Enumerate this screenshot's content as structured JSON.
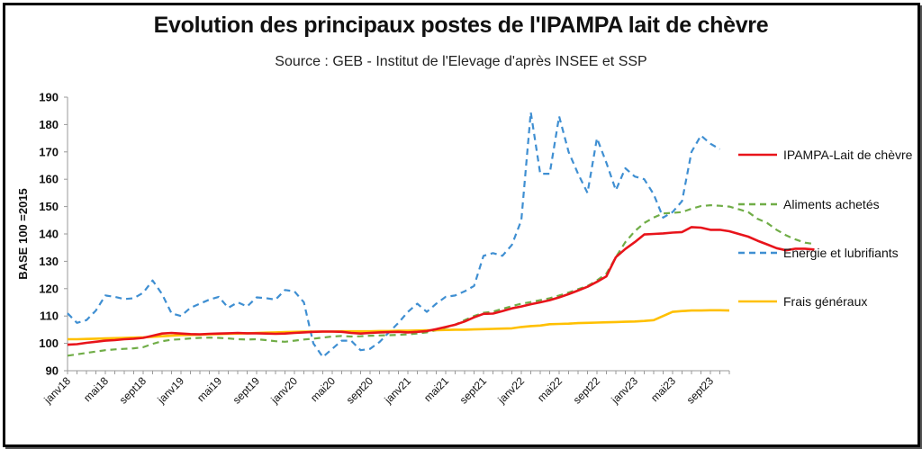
{
  "chart_data": {
    "type": "line",
    "title": "Evolution des principaux postes de l'IPAMPA lait de chèvre",
    "subtitle": "Source : GEB - Institut de l'Elevage d'après INSEE et SSP",
    "ylabel": "BASE 100 =2015",
    "xlabel": "",
    "ylim": [
      90,
      190
    ],
    "yticks": [
      90,
      100,
      110,
      120,
      130,
      140,
      150,
      160,
      170,
      180,
      190
    ],
    "xtick_labels": [
      "janv18",
      "mai18",
      "sept18",
      "janv19",
      "mai19",
      "sept19",
      "janv20",
      "mai20",
      "sept20",
      "janv21",
      "mai21",
      "sept21",
      "janv22",
      "mai22",
      "sept22",
      "janv23",
      "mai23",
      "sept23"
    ],
    "grid": false,
    "legend_position": "right",
    "series": [
      {
        "name": "IPAMPA-Lait de chèvre",
        "color": "#e8141b",
        "dash": "solid",
        "values": [
          99.5,
          99.7,
          100.2,
          100.6,
          101.0,
          101.2,
          101.5,
          101.7,
          102.0,
          102.8,
          103.6,
          103.8,
          103.6,
          103.4,
          103.3,
          103.5,
          103.6,
          103.7,
          103.8,
          103.7,
          103.7,
          103.6,
          103.5,
          103.6,
          103.8,
          104.0,
          104.2,
          104.3,
          104.3,
          104.2,
          103.8,
          103.6,
          103.8,
          104.0,
          104.1,
          104.2,
          104.0,
          104.2,
          104.5,
          105.2,
          106.0,
          106.8,
          108.0,
          109.5,
          110.8,
          110.9,
          111.8,
          112.8,
          113.5,
          114.3,
          115.0,
          115.8,
          116.8,
          118.0,
          119.3,
          120.7,
          122.5,
          124.5,
          131.5,
          134.5,
          137.0,
          139.8,
          140.0,
          140.2,
          140.5,
          140.7,
          142.5,
          142.3,
          141.5,
          141.5,
          141.0,
          140.0,
          139.0,
          137.5,
          136.2,
          134.8,
          134.0,
          134.6,
          134.6,
          134.3
        ]
      },
      {
        "name": "Aliments achetés",
        "color": "#70ad47",
        "dash": "dashed",
        "values": [
          95.5,
          96.0,
          96.5,
          97.0,
          97.5,
          97.8,
          98.0,
          98.2,
          98.6,
          99.8,
          100.8,
          101.3,
          101.5,
          101.8,
          102.0,
          102.1,
          102.0,
          101.8,
          101.5,
          101.4,
          101.5,
          101.2,
          100.8,
          100.6,
          101.0,
          101.4,
          101.7,
          102.1,
          102.5,
          102.7,
          102.5,
          102.6,
          102.8,
          102.9,
          103.0,
          103.1,
          103.3,
          103.6,
          104.0,
          104.8,
          105.8,
          106.8,
          108.5,
          110.0,
          111.2,
          111.6,
          112.6,
          113.6,
          114.5,
          115.1,
          115.8,
          116.5,
          117.5,
          118.6,
          119.8,
          121.0,
          123.0,
          125.5,
          131.5,
          137.0,
          141.0,
          144.0,
          146.0,
          147.5,
          147.7,
          148.0,
          149.2,
          150.2,
          150.5,
          150.3,
          150.0,
          149.0,
          148.0,
          145.5,
          144.0,
          141.5,
          139.5,
          138.0,
          136.8,
          136.3
        ]
      },
      {
        "name": "Energie et lubrifiants",
        "color": "#3f8fd2",
        "dash": "dashed",
        "values": [
          111.0,
          107.5,
          108.5,
          112.0,
          117.5,
          117.0,
          116.2,
          116.5,
          118.5,
          123.0,
          118.0,
          111.0,
          110.0,
          113.0,
          114.5,
          116.0,
          117.0,
          113.0,
          115.0,
          113.5,
          116.8,
          116.5,
          116.0,
          119.5,
          119.0,
          115.0,
          100.0,
          95.0,
          98.0,
          101.0,
          101.0,
          97.5,
          98.0,
          100.5,
          104.0,
          107.5,
          111.5,
          114.5,
          111.5,
          114.5,
          117.0,
          117.5,
          119.0,
          121.0,
          132.0,
          133.0,
          132.0,
          136.0,
          145.0,
          184.5,
          162.0,
          162.0,
          183.0,
          170.0,
          162.0,
          155.0,
          175.0,
          166.0,
          156.0,
          164.0,
          161.0,
          160.0,
          154.5,
          146.0,
          148.0,
          152.0,
          170.0,
          176.0,
          173.0,
          171.0
        ]
      },
      {
        "name": "Frais généraux",
        "color": "#ffc000",
        "dash": "solid",
        "values": [
          101.5,
          101.5,
          101.6,
          101.7,
          101.8,
          101.9,
          102.0,
          102.1,
          102.2,
          102.4,
          102.6,
          102.8,
          103.0,
          103.1,
          103.2,
          103.3,
          103.4,
          103.5,
          103.6,
          103.7,
          103.8,
          103.9,
          104.0,
          104.1,
          104.2,
          104.3,
          104.3,
          104.3,
          104.3,
          104.4,
          104.4,
          104.4,
          104.4,
          104.5,
          104.5,
          104.6,
          104.6,
          104.7,
          104.8,
          104.8,
          104.9,
          105.0,
          105.0,
          105.1,
          105.2,
          105.3,
          105.4,
          105.5,
          106.0,
          106.3,
          106.5,
          107.0,
          107.1,
          107.2,
          107.4,
          107.5,
          107.6,
          107.7,
          107.8,
          107.9,
          108.0,
          108.2,
          108.5,
          110.0,
          111.5,
          111.8,
          112.0,
          112.0,
          112.1,
          112.1,
          112.0
        ]
      }
    ]
  }
}
